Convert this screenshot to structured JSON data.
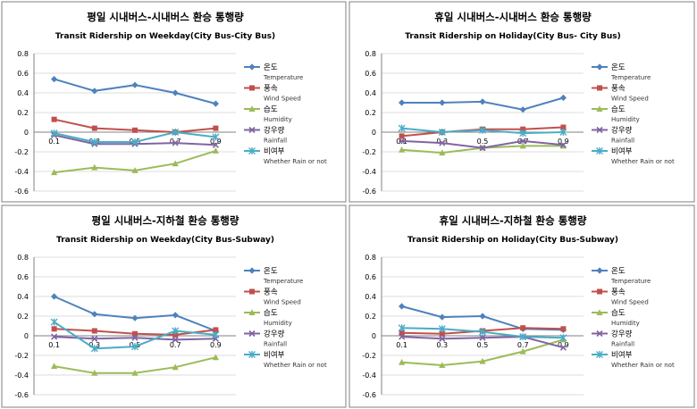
{
  "colors": {
    "temperature": "#4F81BD",
    "wind_speed": "#C0504D",
    "humidity": "#9BBB59",
    "rainfall": "#8064A2",
    "rain_or_not": "#4BACC6"
  },
  "chart_data": [
    {
      "type": "line",
      "title": "평일 시내버스-시내버스 환승 통행량",
      "subtitle": "Transit Ridership on Weekday(City Bus-City Bus)",
      "xlabel": "",
      "ylabel": "",
      "categories": [
        "0.1",
        "0.3",
        "0.5",
        "0.7",
        "0.9"
      ],
      "ylim": [
        -0.6,
        0.8
      ],
      "yticks": [
        "0.8",
        "0.6",
        "0.4",
        "0.2",
        "0",
        "-0.2",
        "-0.4",
        "-0.6"
      ],
      "grid": true,
      "legend_position": "right",
      "series": [
        {
          "name": "온도",
          "name_en": "Temperature",
          "marker": "diamond",
          "values": [
            0.54,
            0.42,
            0.48,
            0.4,
            0.29
          ]
        },
        {
          "name": "풍속",
          "name_en": "Wind Speed",
          "marker": "square",
          "values": [
            0.13,
            0.04,
            0.02,
            0.0,
            0.04
          ]
        },
        {
          "name": "습도",
          "name_en": "Humidity",
          "marker": "triangle",
          "values": [
            -0.41,
            -0.36,
            -0.39,
            -0.32,
            -0.19
          ]
        },
        {
          "name": "강우량",
          "name_en": "Rainfall",
          "marker": "x",
          "values": [
            -0.03,
            -0.12,
            -0.12,
            -0.11,
            -0.13
          ]
        },
        {
          "name": "비여부",
          "name_en": "Whether Rain or not",
          "marker": "star",
          "values": [
            -0.01,
            -0.1,
            -0.1,
            0.0,
            -0.05
          ]
        }
      ]
    },
    {
      "type": "line",
      "title": "휴일 시내버스-시내버스 환승 통행량",
      "subtitle": "Transit Ridership on Holiday(City Bus- City Bus)",
      "xlabel": "",
      "ylabel": "",
      "categories": [
        "0.1",
        "0.3",
        "0.5",
        "0.7",
        "0.9"
      ],
      "ylim": [
        -0.6,
        0.8
      ],
      "yticks": [
        "0.8",
        "0.6",
        "0.4",
        "0.2",
        "0",
        "-0.2",
        "-0.4",
        "-0.6"
      ],
      "grid": true,
      "legend_position": "right",
      "series": [
        {
          "name": "온도",
          "name_en": "Temperature",
          "marker": "diamond",
          "values": [
            0.3,
            0.3,
            0.31,
            0.23,
            0.35
          ]
        },
        {
          "name": "풍속",
          "name_en": "Wind Speed",
          "marker": "square",
          "values": [
            -0.04,
            0.0,
            0.03,
            0.03,
            0.05
          ]
        },
        {
          "name": "습도",
          "name_en": "Humidity",
          "marker": "triangle",
          "values": [
            -0.18,
            -0.21,
            -0.16,
            -0.14,
            -0.14
          ]
        },
        {
          "name": "강우량",
          "name_en": "Rainfall",
          "marker": "x",
          "values": [
            -0.09,
            -0.11,
            -0.16,
            -0.09,
            -0.13
          ]
        },
        {
          "name": "비여부",
          "name_en": "Whether Rain or not",
          "marker": "star",
          "values": [
            0.04,
            0.0,
            0.02,
            -0.01,
            0.0
          ]
        }
      ]
    },
    {
      "type": "line",
      "title": "평일 시내버스-지하철 환승 통행량",
      "subtitle": "Transit Ridership on Weekday(City Bus-Subway)",
      "xlabel": "",
      "ylabel": "",
      "categories": [
        "0.1",
        "0.3",
        "0.5",
        "0.7",
        "0.9"
      ],
      "ylim": [
        -0.6,
        0.8
      ],
      "yticks": [
        "0.8",
        "0.6",
        "0.4",
        "0.2",
        "0",
        "-0.2",
        "-0.4",
        "-0.6"
      ],
      "grid": true,
      "legend_position": "right",
      "series": [
        {
          "name": "온도",
          "name_en": "Temperature",
          "marker": "diamond",
          "values": [
            0.4,
            0.22,
            0.18,
            0.21,
            0.05
          ]
        },
        {
          "name": "풍속",
          "name_en": "Wind Speed",
          "marker": "square",
          "values": [
            0.07,
            0.05,
            0.02,
            0.01,
            0.06
          ]
        },
        {
          "name": "습도",
          "name_en": "Humidity",
          "marker": "triangle",
          "values": [
            -0.31,
            -0.38,
            -0.38,
            -0.32,
            -0.22
          ]
        },
        {
          "name": "강우량",
          "name_en": "Rainfall",
          "marker": "x",
          "values": [
            -0.01,
            -0.03,
            -0.02,
            -0.04,
            -0.03
          ]
        },
        {
          "name": "비여부",
          "name_en": "Whether Rain or not",
          "marker": "star",
          "values": [
            0.14,
            -0.13,
            -0.11,
            0.05,
            0.01
          ]
        }
      ]
    },
    {
      "type": "line",
      "title": "휴일 시내버스-지하철 환승 통행량",
      "subtitle": "Transit Ridership on Holiday(City Bus-Subway)",
      "xlabel": "",
      "ylabel": "",
      "categories": [
        "0.1",
        "0.3",
        "0.5",
        "0.7",
        "0.9"
      ],
      "ylim": [
        -0.6,
        0.8
      ],
      "yticks": [
        "0.8",
        "0.6",
        "0.4",
        "0.2",
        "0",
        "-0.2",
        "-0.4",
        "-0.6"
      ],
      "grid": true,
      "legend_position": "right",
      "series": [
        {
          "name": "온도",
          "name_en": "Temperature",
          "marker": "diamond",
          "values": [
            0.3,
            0.19,
            0.2,
            0.07,
            0.06
          ]
        },
        {
          "name": "풍속",
          "name_en": "Wind Speed",
          "marker": "square",
          "values": [
            0.03,
            0.02,
            0.05,
            0.08,
            0.07
          ]
        },
        {
          "name": "습도",
          "name_en": "Humidity",
          "marker": "triangle",
          "values": [
            -0.27,
            -0.3,
            -0.26,
            -0.16,
            -0.04
          ]
        },
        {
          "name": "강우량",
          "name_en": "Rainfall",
          "marker": "x",
          "values": [
            -0.01,
            -0.03,
            -0.02,
            -0.01,
            -0.12
          ]
        },
        {
          "name": "비여부",
          "name_en": "Whether Rain or not",
          "marker": "star",
          "values": [
            0.08,
            0.07,
            0.04,
            -0.01,
            -0.02
          ]
        }
      ]
    }
  ]
}
